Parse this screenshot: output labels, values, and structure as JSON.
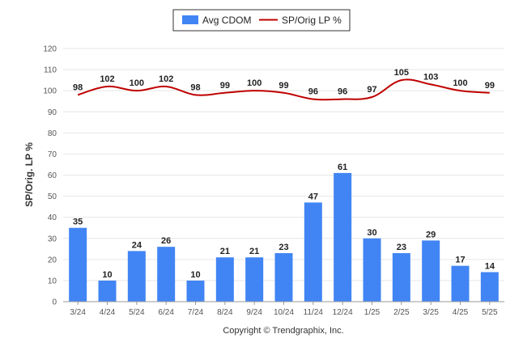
{
  "chart_data": {
    "type": "bar",
    "categories": [
      "3/24",
      "4/24",
      "5/24",
      "6/24",
      "7/24",
      "8/24",
      "9/24",
      "10/24",
      "11/24",
      "12/24",
      "1/25",
      "2/25",
      "3/25",
      "4/25",
      "5/25"
    ],
    "series": [
      {
        "name": "Avg CDOM",
        "type": "bar",
        "color": "#4185f4",
        "values": [
          35,
          10,
          24,
          26,
          10,
          21,
          21,
          23,
          47,
          61,
          30,
          23,
          29,
          17,
          14
        ]
      },
      {
        "name": "SP/Orig LP %",
        "type": "line",
        "color": "#c00000",
        "values": [
          98,
          102,
          100,
          102,
          98,
          99,
          100,
          99,
          96,
          96,
          97,
          105,
          103,
          100,
          99
        ]
      }
    ],
    "ylabel": "SP/Orig. LP %",
    "ylim": [
      0,
      120
    ],
    "yticks": [
      "0",
      "10",
      "20",
      "30",
      "40",
      "50",
      "60",
      "70",
      "80",
      "90",
      "100",
      "110",
      "120"
    ],
    "grid": true,
    "legend_position": "top-center"
  },
  "footer": {
    "copyright": "Copyright © Trendgraphix, Inc."
  }
}
